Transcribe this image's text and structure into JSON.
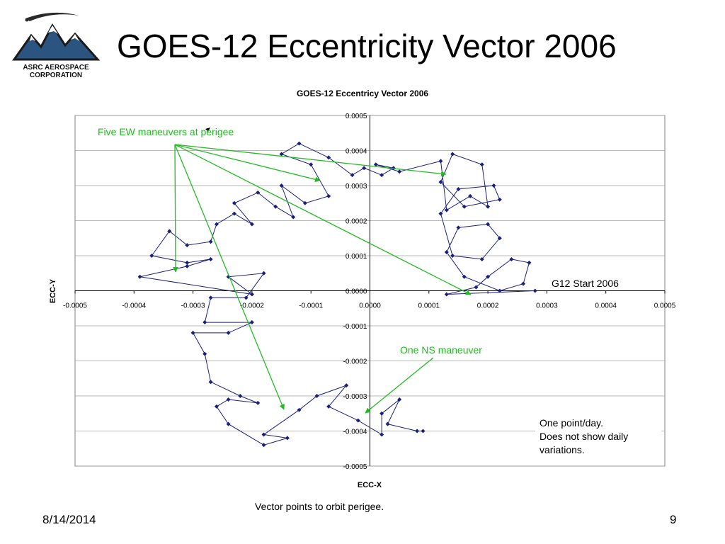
{
  "slide": {
    "title": "GOES-12 Eccentricity Vector 2006",
    "logo_text": [
      "ASRC AEROSPACE",
      "CORPORATION"
    ],
    "date": "8/14/2014",
    "page": "9",
    "caption": "Vector points to orbit perigee."
  },
  "colors": {
    "series": "#1b1f7a",
    "annotation": "#22bb22",
    "grid": "#a0a0a0"
  },
  "chart_data": {
    "type": "scatter",
    "title": "GOES-12 Eccentricy Vector 2006",
    "xlabel": "ECC-X",
    "ylabel": "ECC-Y",
    "xlim": [
      -0.0005,
      0.0005
    ],
    "ylim": [
      -0.0005,
      0.0005
    ],
    "x_ticks": [
      "-0.0005",
      "-0.0004",
      "-0.0003",
      "-0.0002",
      "-0.0001",
      "0.0000",
      "0.0001",
      "0.0002",
      "0.0003",
      "0.0004",
      "0.0005"
    ],
    "y_ticks": [
      "0.0005",
      "0.0004",
      "0.0003",
      "0.0002",
      "0.0001",
      "0.0000",
      "-0.0001",
      "-0.0002",
      "-0.0003",
      "-0.0004",
      "-0.0005"
    ],
    "grid": "horizontal",
    "legend": "none",
    "series": [
      {
        "marker": "diamond",
        "points": [
          [
            0.00028,
            0.0
          ],
          [
            0.00013,
            -1e-05
          ],
          [
            0.00018,
            1e-05
          ],
          [
            0.0002,
            4e-05
          ],
          [
            0.00024,
            9e-05
          ],
          [
            0.00027,
            8e-05
          ],
          [
            0.00026,
            2e-05
          ],
          [
            0.00022,
            0.0
          ],
          [
            0.00016,
            4e-05
          ],
          [
            0.00013,
            0.00011
          ],
          [
            0.00015,
            0.00018
          ],
          [
            0.0002,
            0.00019
          ],
          [
            0.00022,
            0.00015
          ],
          [
            0.00019,
            9e-05
          ],
          [
            0.00014,
            0.0001
          ],
          [
            0.00012,
            0.00022
          ],
          [
            0.00015,
            0.00029
          ],
          [
            0.00021,
            0.0003
          ],
          [
            0.00022,
            0.00026
          ],
          [
            0.00016,
            0.00024
          ],
          [
            0.00012,
            0.00031
          ],
          [
            0.00014,
            0.00039
          ],
          [
            0.00019,
            0.00036
          ],
          [
            0.0002,
            0.00024
          ],
          [
            0.00017,
            0.00027
          ],
          [
            0.00013,
            0.00023
          ],
          [
            0.00012,
            0.00037
          ],
          [
            5e-05,
            0.00034
          ],
          [
            1e-05,
            0.00036
          ],
          [
            4e-05,
            0.00035
          ],
          [
            2e-05,
            0.00033
          ],
          [
            -1e-05,
            0.00035
          ],
          [
            -3e-05,
            0.00033
          ],
          [
            -7e-05,
            0.00038
          ],
          [
            -0.00012,
            0.00042
          ],
          [
            -0.00015,
            0.00039
          ],
          [
            -0.0001,
            0.00036
          ],
          [
            -7e-05,
            0.00027
          ],
          [
            -0.00011,
            0.00025
          ],
          [
            -0.00015,
            0.0003
          ],
          [
            -0.00013,
            0.00021
          ],
          [
            -0.00016,
            0.00024
          ],
          [
            -0.00019,
            0.00028
          ],
          [
            -0.00023,
            0.00025
          ],
          [
            -0.0002,
            0.00019
          ],
          [
            -0.00023,
            0.00022
          ],
          [
            -0.00026,
            0.00019
          ],
          [
            -0.00027,
            0.00014
          ],
          [
            -0.00031,
            0.00013
          ],
          [
            -0.00034,
            0.00017
          ],
          [
            -0.00037,
            0.0001
          ],
          [
            -0.00031,
            8e-05
          ],
          [
            -0.00027,
            9e-05
          ],
          [
            -0.00031,
            7e-05
          ],
          [
            -0.00039,
            4e-05
          ],
          [
            -0.0002,
            -1e-05
          ],
          [
            -0.00024,
            4e-05
          ],
          [
            -0.00018,
            5e-05
          ],
          [
            -0.00021,
            -2e-05
          ],
          [
            -0.00027,
            -2e-05
          ],
          [
            -0.00028,
            -9e-05
          ],
          [
            -0.0002,
            -9e-05
          ],
          [
            -0.00024,
            -0.00012
          ],
          [
            -0.0003,
            -0.00012
          ],
          [
            -0.00028,
            -0.00018
          ],
          [
            -0.00027,
            -0.00026
          ],
          [
            -0.00022,
            -0.0003
          ],
          [
            -0.00019,
            -0.00032
          ],
          [
            -0.00024,
            -0.00031
          ],
          [
            -0.00026,
            -0.00033
          ],
          [
            -0.00024,
            -0.00038
          ],
          [
            -0.00018,
            -0.00044
          ],
          [
            -0.00014,
            -0.00042
          ],
          [
            -0.00018,
            -0.00041
          ],
          [
            -0.00012,
            -0.00034
          ],
          [
            -9e-05,
            -0.0003
          ],
          [
            -4e-05,
            -0.00027
          ],
          [
            -7e-05,
            -0.00033
          ],
          [
            -2e-05,
            -0.00037
          ],
          [
            2e-05,
            -0.00041
          ],
          [
            2e-05,
            -0.00035
          ],
          [
            5e-05,
            -0.00031
          ],
          [
            3e-05,
            -0.00038
          ],
          [
            8e-05,
            -0.0004
          ],
          [
            9e-05,
            -0.0004
          ]
        ]
      }
    ],
    "annotations": [
      {
        "text": "Five EW maneuvers at perigee"
      },
      {
        "text": "G12 Start 2006"
      },
      {
        "text": "One NS maneuver"
      }
    ],
    "note": [
      "One point/day.",
      "Does not show daily",
      "variations."
    ]
  }
}
